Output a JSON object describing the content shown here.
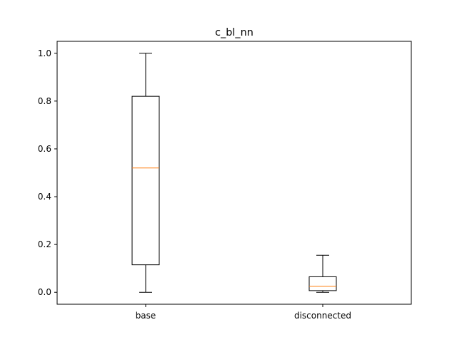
{
  "chart_data": {
    "type": "box",
    "title": "c_bl_nn",
    "xlabel": "",
    "ylabel": "",
    "categories": [
      "base",
      "disconnected"
    ],
    "ylim": [
      -0.05,
      1.05
    ],
    "yticks": [
      0.0,
      0.2,
      0.4,
      0.6,
      0.8,
      1.0
    ],
    "ytick_labels": [
      "0.0",
      "0.2",
      "0.4",
      "0.6",
      "0.8",
      "1.0"
    ],
    "grid": false,
    "boxes": [
      {
        "category": "base",
        "whisker_low": 0.0,
        "q1": 0.115,
        "median": 0.52,
        "q3": 0.82,
        "whisker_high": 1.0
      },
      {
        "category": "disconnected",
        "whisker_low": 0.0,
        "q1": 0.007,
        "median": 0.025,
        "q3": 0.065,
        "whisker_high": 0.155
      }
    ],
    "colors": {
      "box": "#000000",
      "median": "#ff7f0e",
      "axes": "#000000"
    }
  }
}
